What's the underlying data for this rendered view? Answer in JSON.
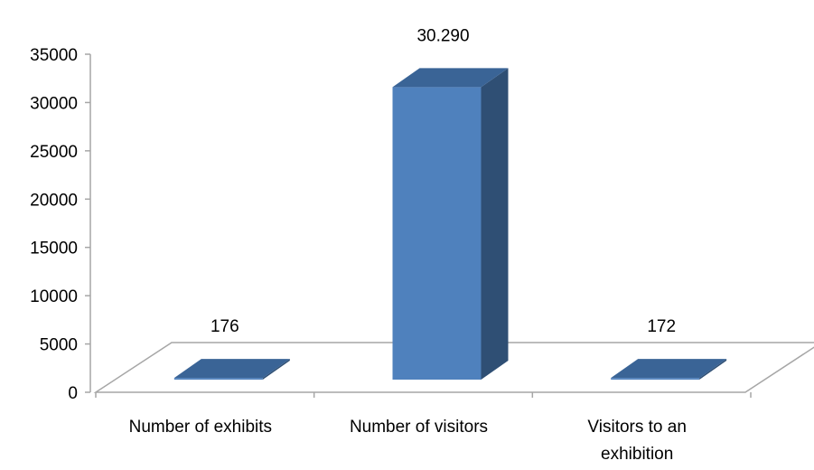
{
  "chart_data": {
    "type": "bar",
    "categories": [
      "Number of exhibits",
      "Number of visitors",
      "Visitors to an exhibition"
    ],
    "category_label_lines": [
      [
        "Number of exhibits"
      ],
      [
        "Number of visitors"
      ],
      [
        "Visitors to an",
        "exhibition"
      ]
    ],
    "values": [
      176,
      30290,
      172
    ],
    "data_labels": [
      "176",
      "30.290",
      "172"
    ],
    "ylim": [
      0,
      35000
    ],
    "yticks": [
      0,
      5000,
      10000,
      15000,
      20000,
      25000,
      30000,
      35000
    ],
    "ytick_labels": [
      "0",
      "5000",
      "10000",
      "15000",
      "20000",
      "25000",
      "30000",
      "35000"
    ],
    "title": "",
    "xlabel": "",
    "ylabel": "",
    "grid": false,
    "legend": "none",
    "style": "3d-column",
    "colors": {
      "front": "#4F81BD",
      "side": "#2F4F74",
      "top": "#3A6496",
      "floor_stroke": "#A6A6A6",
      "axis": "#A6A6A6"
    }
  }
}
